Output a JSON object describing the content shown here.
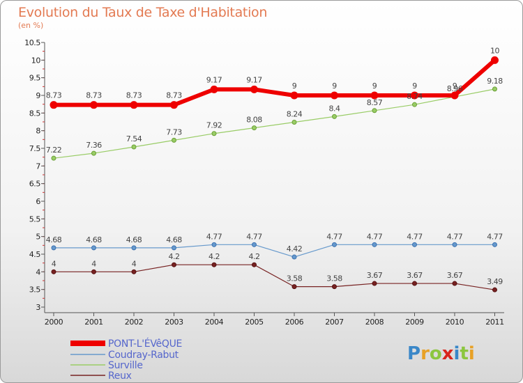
{
  "header": {
    "title": "Evolution du Taux de Taxe d'Habitation",
    "unit": "(en %)"
  },
  "logo": {
    "text": "Proxiti",
    "letter_colors": [
      "#3a87c8",
      "#e8a126",
      "#8cc63f",
      "#d9251c",
      "#3a87c8",
      "#8cc63f",
      "#e8a126"
    ]
  },
  "chart_data": {
    "type": "line",
    "title": "Evolution du Taux de Taxe d'Habitation",
    "ylabel": "(en %)",
    "xlabel": "",
    "x": [
      "2000",
      "2001",
      "2002",
      "2003",
      "2004",
      "2005",
      "2006",
      "2007",
      "2008",
      "2009",
      "2010",
      "2011"
    ],
    "ylim": [
      3,
      10.5
    ],
    "yticks": [
      "3",
      "3.5",
      "4",
      "4.5",
      "5",
      "5.5",
      "6",
      "6.5",
      "7",
      "7.5",
      "8",
      "8.5",
      "9",
      "9.5",
      "10",
      "10.5"
    ],
    "grid": false,
    "legend_position": "bottom-left",
    "series": [
      {
        "name": "PONT-L'ÉVêQUE",
        "color": "#ee0000",
        "values": [
          8.73,
          8.73,
          8.73,
          8.73,
          9.17,
          9.17,
          9,
          9,
          9,
          9,
          9,
          10
        ],
        "labels": [
          "8.73",
          "8.73",
          "8.73",
          "8.73",
          "9.17",
          "9.17",
          "9",
          "9",
          "9",
          "9",
          "9",
          "10"
        ]
      },
      {
        "name": "Coudray-Rabut",
        "color": "#6699cc",
        "values": [
          4.68,
          4.68,
          4.68,
          4.68,
          4.77,
          4.77,
          4.42,
          4.77,
          4.77,
          4.77,
          4.77,
          4.77
        ],
        "labels": [
          "4.68",
          "4.68",
          "4.68",
          "4.68",
          "4.77",
          "4.77",
          "4.42",
          "4.77",
          "4.77",
          "4.77",
          "4.77",
          "4.77"
        ]
      },
      {
        "name": "Surville",
        "color": "#99cc66",
        "values": [
          7.22,
          7.36,
          7.54,
          7.73,
          7.92,
          8.08,
          8.24,
          8.4,
          8.57,
          8.74,
          8.96,
          9.18
        ],
        "labels": [
          "7.22",
          "7.36",
          "7.54",
          "7.73",
          "7.92",
          "8.08",
          "8.24",
          "8.4",
          "8.57",
          "8.74",
          "8.96",
          "9.18"
        ]
      },
      {
        "name": "Reux",
        "color": "#772222",
        "values": [
          4,
          4,
          4,
          4.2,
          4.2,
          4.2,
          3.58,
          3.58,
          3.67,
          3.67,
          3.67,
          3.49
        ],
        "labels": [
          "4",
          "4",
          "4",
          "4.2",
          "4.2",
          "4.2",
          "3.58",
          "3.58",
          "3.67",
          "3.67",
          "3.67",
          "3.49"
        ]
      }
    ]
  }
}
